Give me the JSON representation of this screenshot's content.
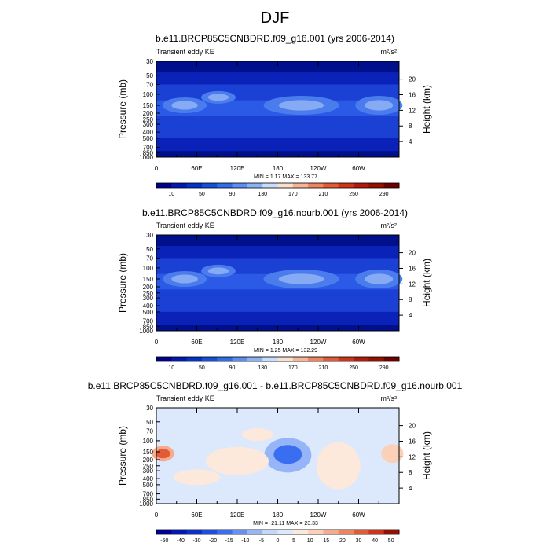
{
  "main_title": "DJF",
  "units_label": "m²/s²",
  "field_label": "Transient eddy KE",
  "left_axis_label": "Pressure (mb)",
  "right_axis_label": "Height (km)",
  "pressure_ticks": [
    "30",
    "50",
    "70",
    "100",
    "150",
    "200",
    "250",
    "300",
    "400",
    "500",
    "700",
    "850",
    "1000"
  ],
  "height_ticks": [
    "4",
    "8",
    "12",
    "16",
    "20"
  ],
  "lon_ticks": [
    "0",
    "60E",
    "120E",
    "180",
    "120W",
    "60W"
  ],
  "chart_data": [
    {
      "type": "heatmap",
      "title": "b.e11.BRCP85C5CNBDRD.f09_g16.001 (yrs 2006-2014)",
      "stats": "MIN =   1.17  MAX = 133.77",
      "colorbar_labels": [
        "10",
        "50",
        "90",
        "130",
        "170",
        "210",
        "250",
        "290"
      ],
      "colorbar_colors": [
        "#00008c",
        "#0018b4",
        "#0033cc",
        "#1450dc",
        "#2e6eea",
        "#5a8ef2",
        "#8cb2f6",
        "#c8dcfc",
        "#fbe0d0",
        "#f6b496",
        "#ef8460",
        "#e35a36",
        "#cf3418",
        "#b41a0c",
        "#961000",
        "#6e0000"
      ],
      "x_range": [
        0,
        360
      ],
      "y_range_mb": [
        1000,
        30
      ]
    },
    {
      "type": "heatmap",
      "title": "b.e11.BRCP85C5CNBDRD.f09_g16.nourb.001 (yrs 2006-2014)",
      "stats": "MIN =   1.25  MAX = 132.29",
      "colorbar_labels": [
        "10",
        "50",
        "90",
        "130",
        "170",
        "210",
        "250",
        "290"
      ],
      "colorbar_colors": [
        "#00008c",
        "#0018b4",
        "#0033cc",
        "#1450dc",
        "#2e6eea",
        "#5a8ef2",
        "#8cb2f6",
        "#c8dcfc",
        "#fbe0d0",
        "#f6b496",
        "#ef8460",
        "#e35a36",
        "#cf3418",
        "#b41a0c",
        "#961000",
        "#6e0000"
      ],
      "x_range": [
        0,
        360
      ],
      "y_range_mb": [
        1000,
        30
      ]
    },
    {
      "type": "heatmap",
      "title": "b.e11.BRCP85C5CNBDRD.f09_g16.001 - b.e11.BRCP85C5CNBDRD.f09_g16.nourb.001",
      "stats": "MIN = -21.11  MAX =  23.33",
      "colorbar_labels": [
        "-50",
        "-40",
        "-30",
        "-20",
        "-15",
        "-10",
        "-5",
        "0",
        "5",
        "10",
        "15",
        "20",
        "30",
        "40",
        "50"
      ],
      "colorbar_colors": [
        "#00008c",
        "#0018b4",
        "#0a30c8",
        "#1e4ee0",
        "#3a6ef0",
        "#6690f4",
        "#96b4f8",
        "#c4d8fc",
        "#dce8fc",
        "#fde8dc",
        "#fbd0b8",
        "#f6ac8c",
        "#ef8460",
        "#e35a36",
        "#cf3418",
        "#961000"
      ],
      "x_range": [
        0,
        360
      ],
      "y_range_mb": [
        1000,
        30
      ]
    }
  ]
}
